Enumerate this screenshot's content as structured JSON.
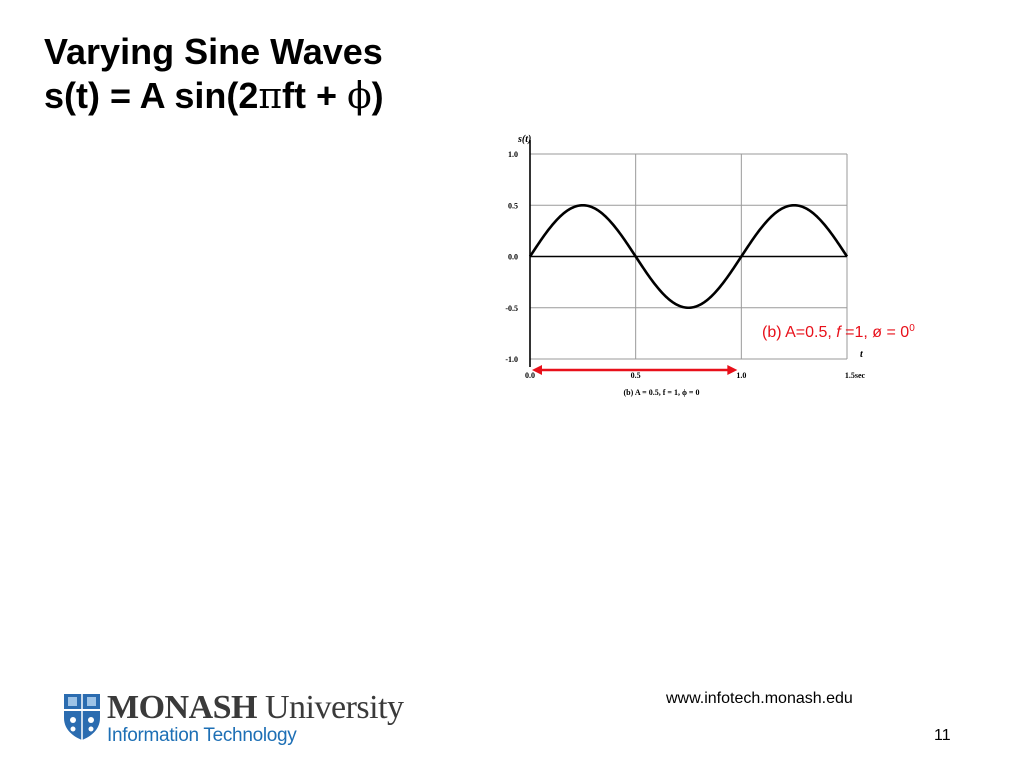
{
  "slide": {
    "title_line1": "Varying Sine Waves",
    "title_line2_prefix": "s(t) = A sin(2",
    "title_pi": "π",
    "title_line2_mid": "ft + ",
    "title_phi": "ϕ",
    "title_line2_suffix": ")"
  },
  "annotation": {
    "prefix": "(b) A=0.5, ",
    "f_symbol": "f",
    "f_value": " =1, ø = 0",
    "superscript": "0",
    "color": "#e8101a"
  },
  "chart_data": {
    "type": "line",
    "ylabel": "s(t)",
    "xlabel": "t",
    "caption": "(b) A = 0.5, f = 1, ϕ = 0",
    "y_ticks": [
      "1.0",
      "0.5",
      "0.0",
      "-0.5",
      "-1.0"
    ],
    "x_ticks": [
      "0.0",
      "0.5",
      "1.0",
      "1.5sec"
    ],
    "xlim": [
      0,
      1.5
    ],
    "ylim": [
      -1.0,
      1.0
    ],
    "grid": true,
    "series": [
      {
        "function": "A*sin(2*pi*f*t + phi)",
        "A": 0.5,
        "f": 1,
        "phi": 0,
        "t_range": [
          0,
          1.5
        ]
      }
    ],
    "period_arrow": {
      "from": 0.0,
      "to": 1.0,
      "color": "#e8101a"
    }
  },
  "footer": {
    "logo_monash": "MONASH",
    "logo_university": " University",
    "logo_department": "Information Technology",
    "url": "www.infotech.monash.edu",
    "page_number": "11"
  }
}
